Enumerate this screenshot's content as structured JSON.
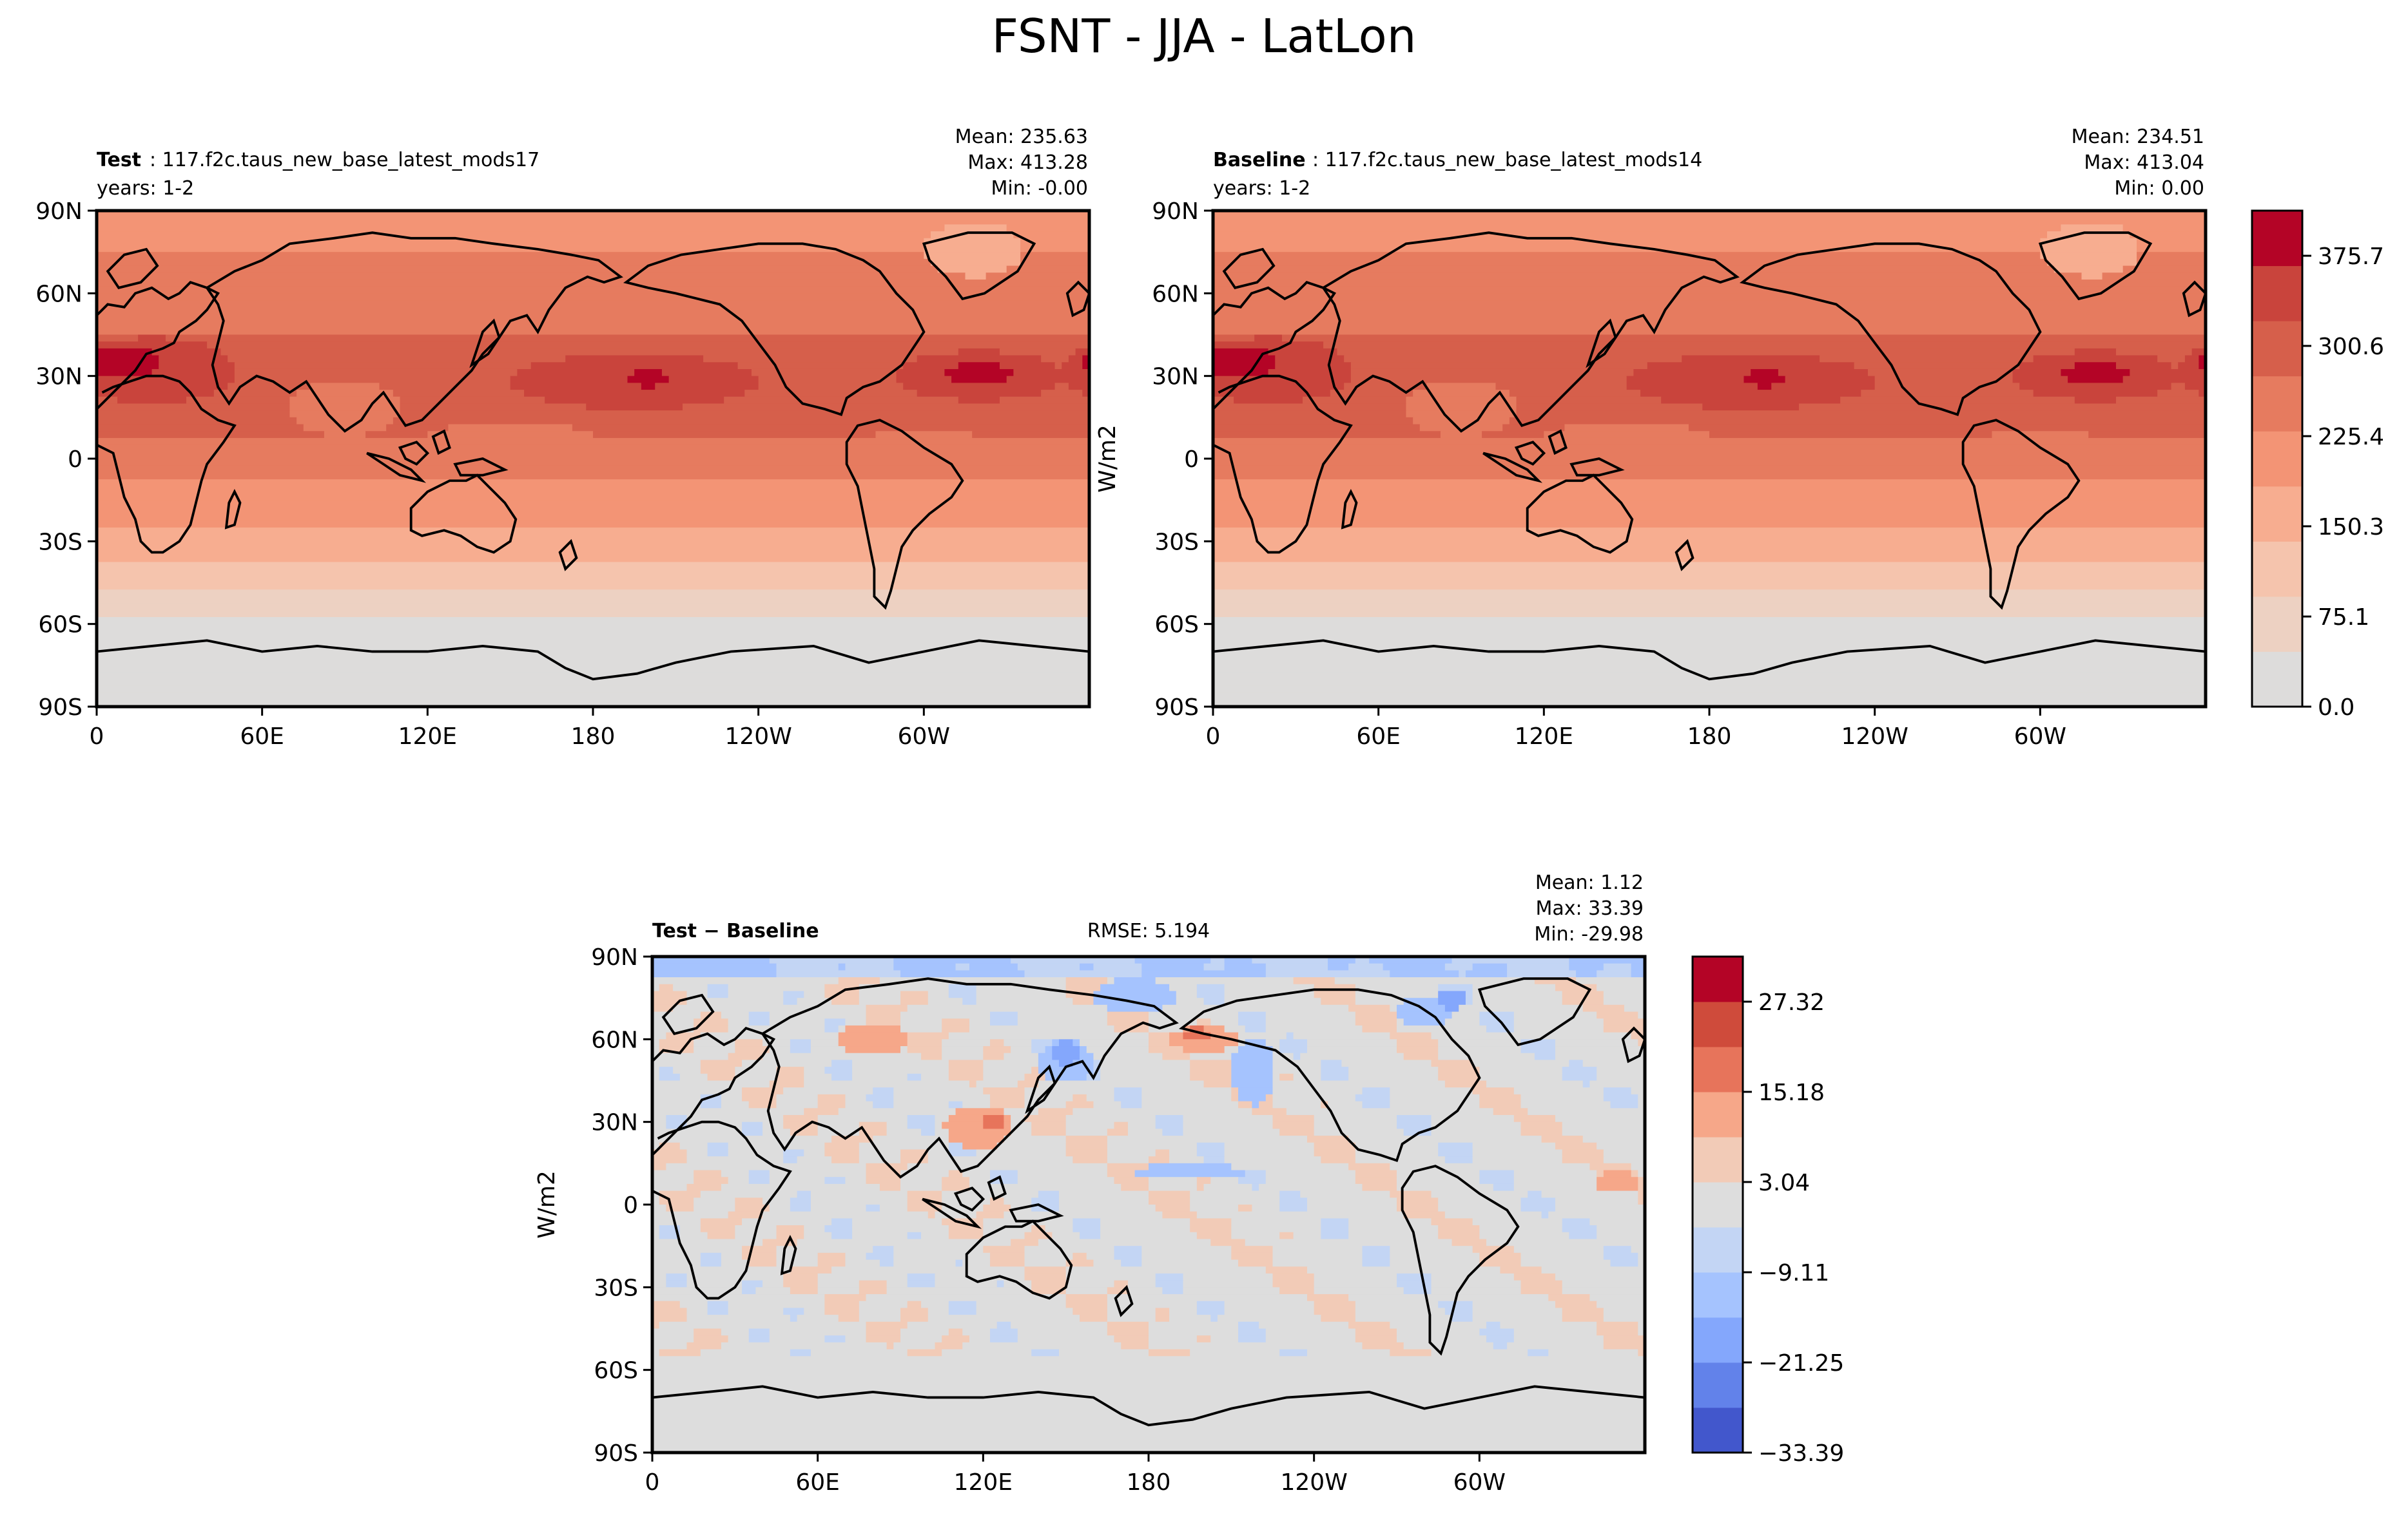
{
  "title": "FSNT - JJA - LatLon",
  "colors": {
    "ref_levels": [
      "#dddcdb",
      "#edd1c2",
      "#f5c4ad",
      "#f7ad90",
      "#f39475",
      "#e67b5f",
      "#d65f4b",
      "#c9443c",
      "#b40426"
    ],
    "diff_levels": [
      "#4257cc",
      "#6282ea",
      "#84a7fc",
      "#a5c3fe",
      "#c3d5f4",
      "#dddddd",
      "#f2cbb7",
      "#f6a789",
      "#e7745b",
      "#cf4b3b",
      "#b40426"
    ]
  },
  "chart_data": [
    {
      "type": "heatmap",
      "panel": "test",
      "label_bold": "Test",
      "label_rest": ": 117.f2c.taus_new_base_latest_mods17",
      "subtitle": "years: 1-2",
      "stats": [
        "Mean: 235.63",
        "Max: 413.28",
        "Min: -0.00"
      ],
      "xticks": [
        "0",
        "60E",
        "120E",
        "180",
        "120W",
        "60W"
      ],
      "yticks": [
        "90N",
        "60N",
        "30N",
        "0",
        "30S",
        "60S",
        "90S"
      ],
      "xlim": [
        0,
        360
      ],
      "ylim": [
        -90,
        90
      ]
    },
    {
      "type": "heatmap",
      "panel": "baseline",
      "label_bold": "Baseline",
      "label_rest": ": 117.f2c.taus_new_base_latest_mods14",
      "subtitle": "years: 1-2",
      "stats": [
        "Mean: 234.51",
        "Max: 413.04",
        "Min:  0.00"
      ],
      "ylabel": "W/m2",
      "xticks": [
        "0",
        "60E",
        "120E",
        "180",
        "120W",
        "60W"
      ],
      "yticks": [
        "90N",
        "60N",
        "30N",
        "0",
        "30S",
        "60S",
        "90S"
      ],
      "xlim": [
        0,
        360
      ],
      "ylim": [
        -90,
        90
      ],
      "colorbar": {
        "ticks": [
          "0.0",
          "75.1",
          "150.3",
          "225.4",
          "300.6",
          "375.7"
        ],
        "range": [
          0,
          413.3
        ]
      }
    },
    {
      "type": "heatmap",
      "panel": "diff",
      "label_bold": "Test − Baseline",
      "rmse": "RMSE: 5.194",
      "stats": [
        "Mean:  1.12",
        "Max: 33.39",
        "Min: -29.98"
      ],
      "ylabel": "W/m2",
      "xticks": [
        "0",
        "60E",
        "120E",
        "180",
        "120W",
        "60W"
      ],
      "yticks": [
        "90N",
        "60N",
        "30N",
        "0",
        "30S",
        "60S",
        "90S"
      ],
      "xlim": [
        0,
        360
      ],
      "ylim": [
        -90,
        90
      ],
      "colorbar": {
        "ticks": [
          "−33.39",
          "−21.25",
          "−9.11",
          "3.04",
          "15.18",
          "27.32"
        ],
        "range": [
          -33.39,
          33.39
        ]
      }
    }
  ]
}
